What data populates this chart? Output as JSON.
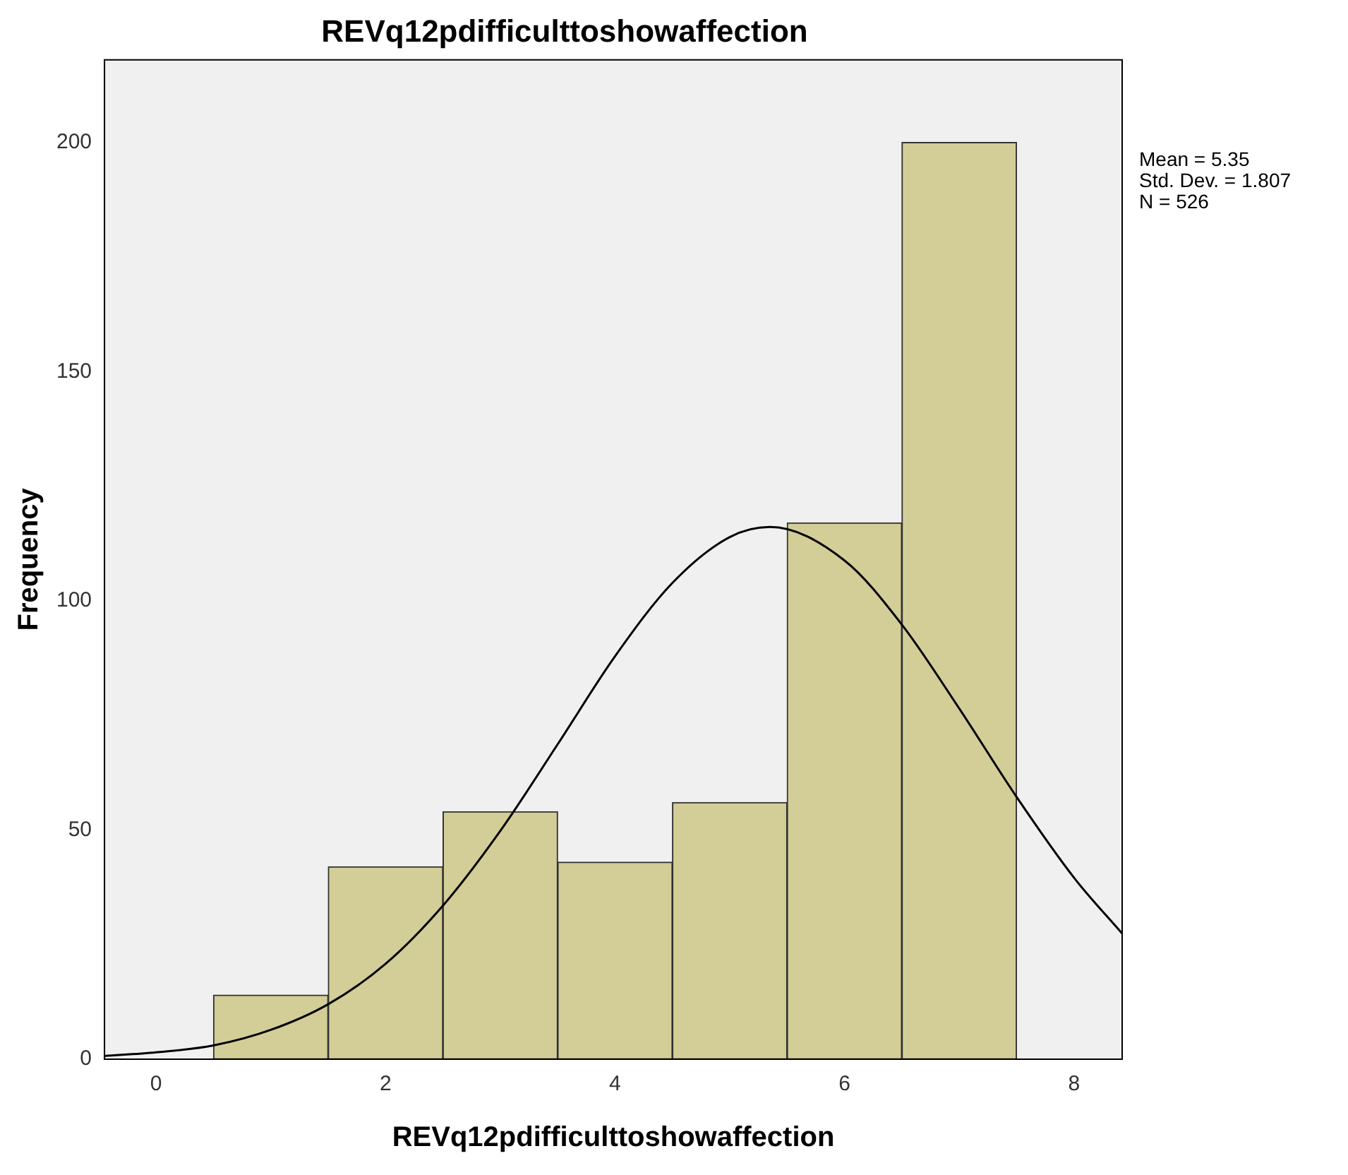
{
  "chart_data": {
    "type": "histogram",
    "title": "REVq12pdifficulttoshowaffection",
    "xlabel": "REVq12pdifficulttoshowaffection",
    "ylabel": "Frequency",
    "bins": [
      0.5,
      1.5,
      2.5,
      3.5,
      4.5,
      5.5,
      6.5,
      7.5
    ],
    "values": [
      14,
      42,
      54,
      43,
      56,
      117,
      200
    ],
    "color": "#d3ce97",
    "series": [
      {
        "type": "line",
        "color": "#000000",
        "x": [
          -0.45,
          0,
          0.5,
          1,
          1.5,
          2,
          2.5,
          3,
          3.5,
          4,
          4.5,
          5,
          5.35,
          6,
          6.5,
          7,
          7.5,
          8,
          8.42
        ],
        "values": [
          0.7,
          1.5,
          3,
          6.4,
          12,
          20.8,
          33.5,
          49.8,
          68.7,
          87.9,
          103.9,
          113.9,
          116.1,
          108.8,
          94.8,
          76.5,
          57.2,
          39.6,
          27.4
        ]
      }
    ],
    "xlim": [
      -0.45,
      8.42
    ],
    "xticks": [
      0,
      2,
      4,
      6,
      8
    ],
    "ylim": [
      0,
      218
    ],
    "yticks": [
      0,
      50,
      100,
      150,
      200
    ],
    "grid": false,
    "legend": false,
    "marker": "none",
    "annotations": [
      "Mean = 5.35",
      "Std. Dev. = 1.807",
      "N = 526"
    ]
  }
}
